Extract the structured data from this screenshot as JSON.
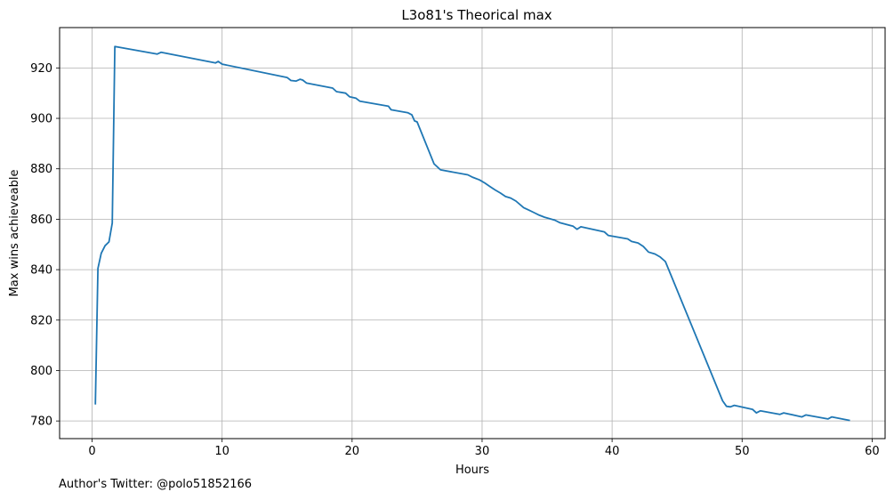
{
  "chart_data": {
    "type": "line",
    "title": "L3o81's Theorical max",
    "xlabel": "Hours",
    "ylabel": "Max wins achieveable",
    "xlim": [
      -2.5,
      61
    ],
    "ylim": [
      773,
      936
    ],
    "xticks": [
      0,
      10,
      20,
      30,
      40,
      50,
      60
    ],
    "yticks": [
      780,
      800,
      820,
      840,
      860,
      880,
      900,
      920
    ],
    "grid": true,
    "line_color": "#1f77b4",
    "series": [
      {
        "x": [
          0.25,
          0.45,
          0.7,
          1.0,
          1.3,
          1.55,
          1.75,
          5.0,
          5.3,
          9.5,
          9.7,
          10.0,
          15.0,
          15.3,
          15.7,
          16.0,
          16.2,
          16.5,
          18.5,
          18.8,
          19.5,
          19.8,
          20.3,
          20.6,
          22.8,
          23.0,
          24.3,
          24.6,
          24.8,
          25.0,
          26.3,
          26.8,
          28.9,
          29.3,
          29.8,
          30.2,
          30.6,
          31.0,
          31.4,
          31.8,
          32.2,
          32.6,
          33.2,
          33.6,
          34.0,
          34.4,
          34.8,
          35.6,
          36.0,
          37.0,
          37.3,
          37.6,
          39.4,
          39.7,
          41.2,
          41.5,
          42.0,
          42.4,
          42.8,
          43.3,
          43.7,
          44.1,
          48.5,
          48.8,
          49.1,
          49.4,
          50.8,
          51.1,
          51.4,
          52.9,
          53.2,
          54.6,
          54.9,
          56.6,
          56.9,
          58.3
        ],
        "y": [
          786.5,
          840.5,
          846.5,
          849.5,
          851,
          858.5,
          928.5,
          925.5,
          926.2,
          922,
          922.6,
          921.5,
          916.2,
          915.0,
          914.8,
          915.5,
          915.2,
          914.0,
          912.0,
          910.6,
          910.0,
          908.6,
          908.0,
          906.8,
          904.8,
          903.4,
          902.2,
          901.4,
          899.0,
          898.6,
          882.0,
          879.6,
          877.6,
          876.6,
          875.6,
          874.4,
          873.0,
          871.6,
          870.4,
          869.0,
          868.4,
          867.2,
          864.6,
          863.6,
          862.6,
          861.6,
          860.8,
          859.6,
          858.6,
          857.2,
          856.0,
          857.0,
          855.0,
          853.6,
          852.2,
          851.2,
          850.6,
          849.2,
          847.0,
          846.2,
          845.0,
          843.2,
          788.0,
          785.8,
          785.6,
          786.2,
          784.6,
          783.2,
          784.0,
          782.6,
          783.2,
          781.6,
          782.4,
          780.8,
          781.6,
          780.2
        ]
      }
    ]
  },
  "footer": {
    "author_note": "Author's Twitter: @polo51852166"
  }
}
